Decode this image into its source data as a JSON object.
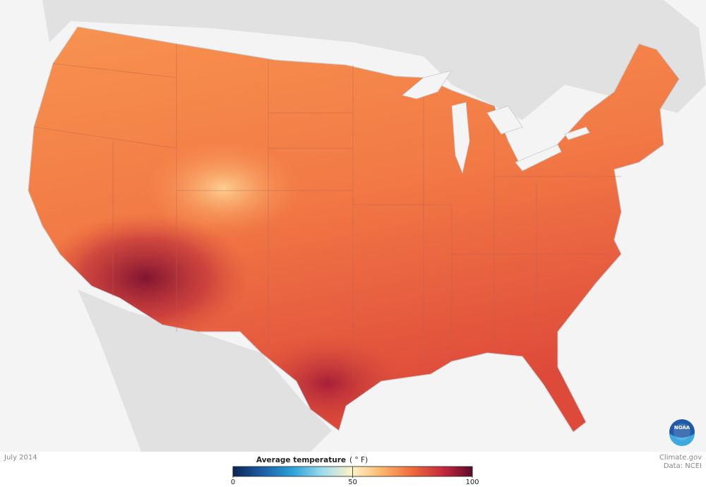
{
  "map": {
    "date": "July 2014",
    "credit": "Climate.gov",
    "source": "Data: NCEI",
    "logo": "NOAA",
    "legend": {
      "title": "Average temperature",
      "unit": "( ° F)",
      "lim": [
        0,
        100
      ],
      "ticks": [
        0,
        50,
        100
      ],
      "colors": [
        "#0a2552",
        "#1c5fa8",
        "#2aa3d8",
        "#9fdcec",
        "#fff4c6",
        "#fbb46a",
        "#ee6a3c",
        "#c82a3c",
        "#5c0a2c"
      ]
    }
  }
}
